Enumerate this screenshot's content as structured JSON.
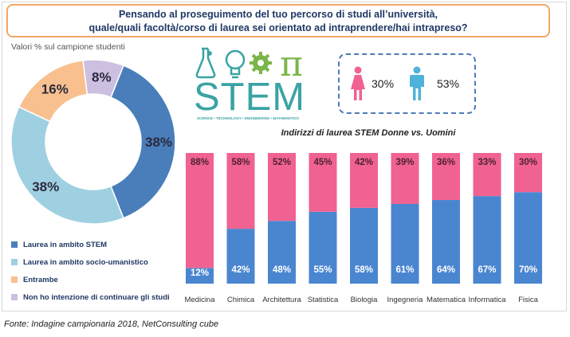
{
  "question": {
    "line1": "Pensando al proseguimento del tuo percorso di studi all’università,",
    "line2": "quale/quali facoltà/corso di laurea sei orientato ad intraprendere/hai intrapreso?"
  },
  "pie_note": "Valori % sul campione studenti",
  "logo": {
    "word": "STEM",
    "subtitle": "SCIENCE • TECHNOLOGY • ENGINEERING • MATHEMATICS",
    "pi": "π"
  },
  "gender": {
    "female_pct": "30%",
    "male_pct": "53%",
    "female_color": "#f06292",
    "male_color": "#4fb3d9"
  },
  "source": "Fonte: Indagine campionaria 2018, NetConsulting cube",
  "chart_data": [
    {
      "type": "pie",
      "donut": true,
      "title": "",
      "slices": [
        {
          "label": "Laurea in ambito STEM",
          "value": 38,
          "display": "38%",
          "color": "#4a7ebb"
        },
        {
          "label": "Laurea in ambito socio-umanistico",
          "value": 38,
          "display": "38%",
          "color": "#9fd0e2"
        },
        {
          "label": "Entrambe",
          "value": 16,
          "display": "16%",
          "color": "#f8c08f"
        },
        {
          "label": "Non ho intenzione di continuare gli studi",
          "value": 8,
          "display": "8%",
          "color": "#cdbfe0"
        }
      ],
      "legend_position": "bottom-left"
    },
    {
      "type": "bar",
      "stacked": true,
      "title": "Indirizzi di laurea STEM Donne vs. Uomini",
      "categories": [
        "Medicina",
        "Chimica",
        "Architettura",
        "Statistica",
        "Biologia",
        "Ingegneria",
        "Matematica",
        "Informatica",
        "Fisica"
      ],
      "series": [
        {
          "values": [
            12,
            42,
            48,
            55,
            58,
            61,
            64,
            67,
            70
          ],
          "color": "#4a86d0"
        },
        {
          "values": [
            88,
            58,
            52,
            45,
            42,
            39,
            36,
            33,
            30
          ],
          "color": "#f06292"
        }
      ],
      "ylim": [
        0,
        100
      ],
      "grid": false,
      "value_format": "%"
    }
  ]
}
